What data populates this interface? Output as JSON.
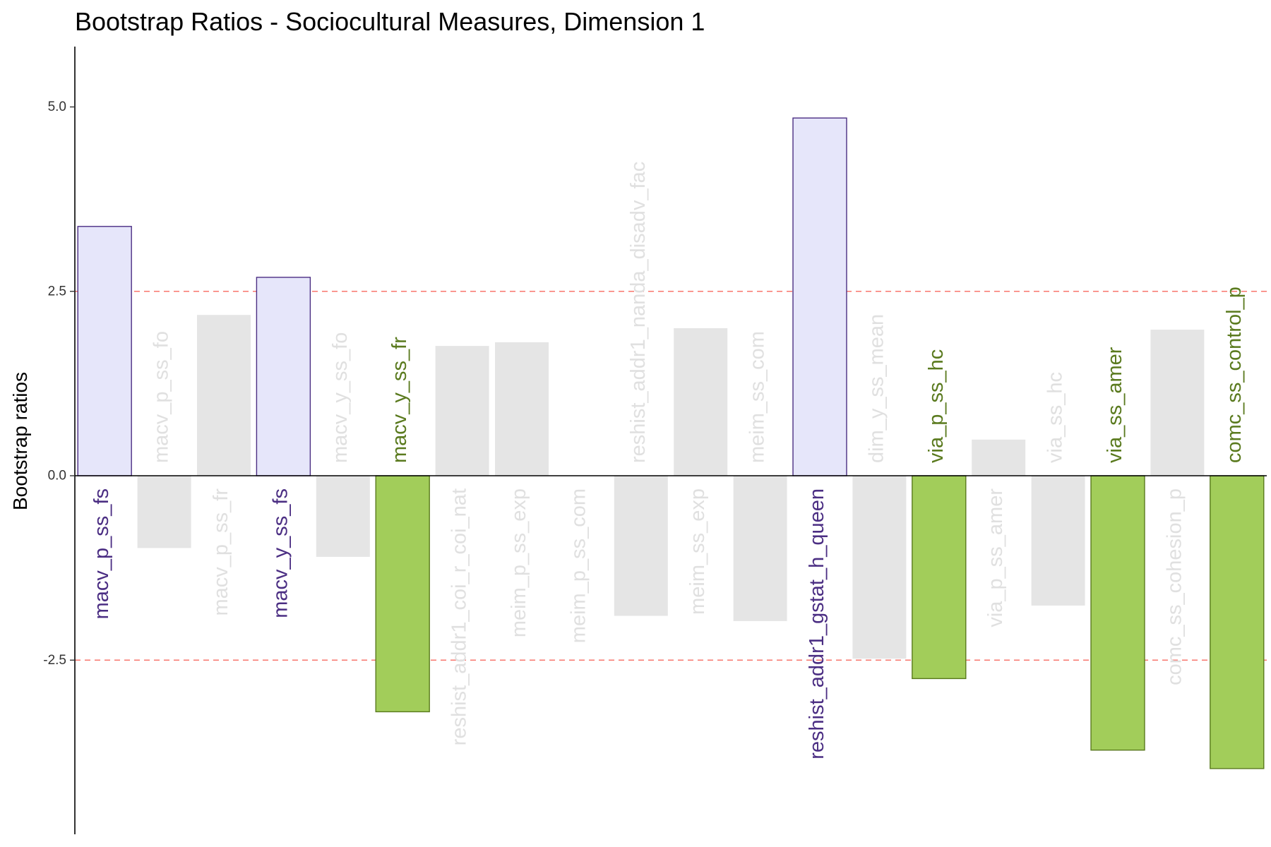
{
  "chart_data": {
    "type": "bar",
    "title": "Bootstrap Ratios - Sociocultural Measures, Dimension 1",
    "xlabel": "",
    "ylabel": "Bootstrap ratios",
    "ylim": [
      -4.8,
      5.8
    ],
    "yticks": [
      "5.0",
      "2.5",
      "0.0",
      "-2.5"
    ],
    "threshold": 2.5,
    "threshold_color": "#f8766d",
    "colors": {
      "positive_significant": {
        "fill": "#e6e6fa",
        "stroke": "#4b2e83",
        "text": "#4b2e83"
      },
      "negative_significant": {
        "fill": "#a2cd5a",
        "stroke": "#5a7a1e",
        "text": "#5a7a1e"
      },
      "not_significant": {
        "fill": "#e5e5e5",
        "text": "#e0e0e0"
      }
    },
    "categories": [
      "macv_p_ss_fs",
      "macv_p_ss_fo",
      "macv_p_ss_fr",
      "macv_y_ss_fs",
      "macv_y_ss_fo",
      "macv_y_ss_fr",
      "reshist_addr1_coi_r_coi_nat",
      "meim_p_ss_exp",
      "meim_p_ss_com",
      "reshist_addr1_nanda_disadv_fac",
      "meim_ss_exp",
      "meim_ss_com",
      "reshist_addr1_gstat_h_queen",
      "dim_y_ss_mean",
      "via_p_ss_hc",
      "via_p_ss_amer",
      "via_ss_hc",
      "via_ss_amer",
      "comc_ss_cohesion_p",
      "comc_ss_control_p"
    ],
    "values": [
      3.38,
      -0.98,
      2.18,
      2.69,
      -1.1,
      -3.2,
      1.76,
      1.81,
      0.0,
      -1.9,
      2.0,
      -1.97,
      4.85,
      -2.48,
      -2.75,
      0.49,
      -1.76,
      -3.72,
      1.98,
      -3.97
    ],
    "groups": [
      "pos",
      "ns",
      "ns",
      "pos",
      "ns",
      "neg",
      "ns",
      "ns",
      "ns",
      "ns",
      "ns",
      "ns",
      "pos",
      "ns",
      "neg",
      "ns",
      "ns",
      "neg",
      "ns",
      "neg"
    ]
  }
}
